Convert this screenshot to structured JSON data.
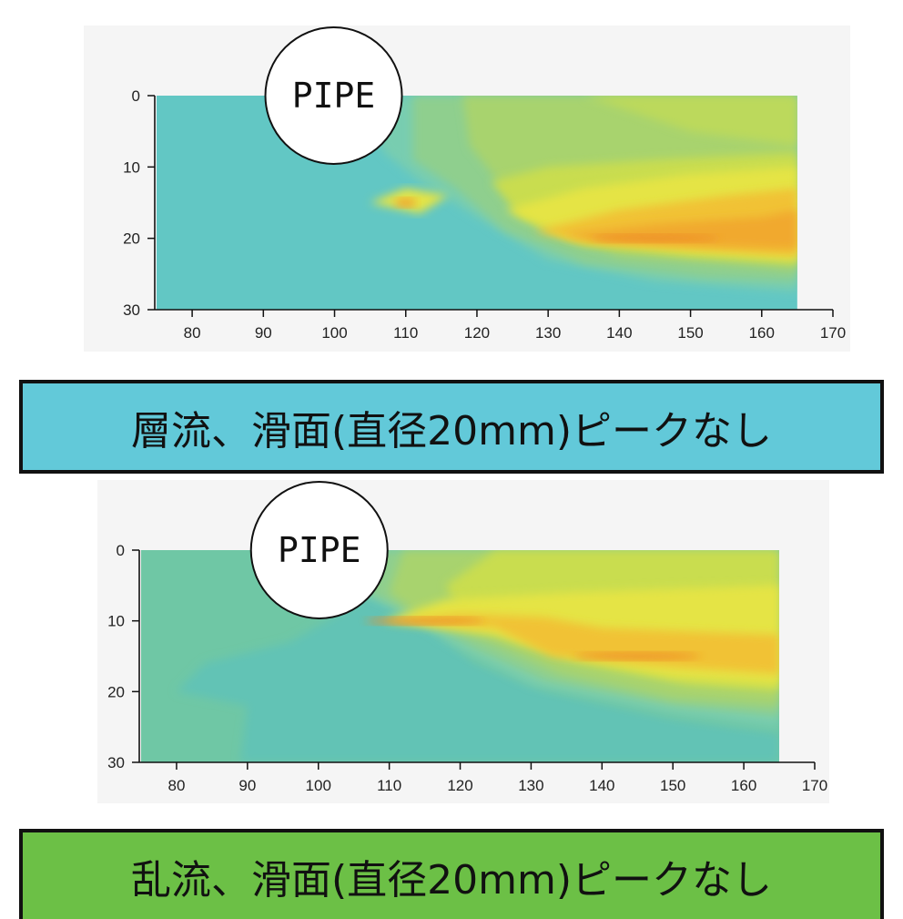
{
  "chart_data": [
    {
      "type": "heatmap",
      "title": "",
      "xlabel": "",
      "ylabel": "",
      "xlim": [
        75,
        170
      ],
      "ylim": [
        0,
        30
      ],
      "y_inverted": true,
      "x_ticks": [
        80,
        90,
        100,
        110,
        120,
        130,
        140,
        150,
        160,
        170
      ],
      "y_ticks": [
        0,
        10,
        20,
        30
      ],
      "data_extent_x": [
        75,
        165
      ],
      "grid": false,
      "annotation": "PIPE",
      "pipe_center": [
        100,
        0
      ],
      "background_color": "#62c7c4",
      "contours": [
        {
          "level": 1,
          "color": "#78cdb0",
          "boundary": [
            [
              105,
              0
            ],
            [
              109,
              10
            ],
            [
              113,
              12
            ],
            [
              122,
              18
            ],
            [
              132,
              24
            ],
            [
              150,
              26
            ],
            [
              165,
              27
            ]
          ]
        },
        {
          "level": 2,
          "color": "#8fcf8e",
          "boundary": [
            [
              112,
              0
            ],
            [
              112,
              10
            ],
            [
              118,
              13
            ],
            [
              125,
              19
            ],
            [
              135,
              23
            ],
            [
              155,
              25
            ],
            [
              165,
              26
            ]
          ]
        },
        {
          "level": 3,
          "color": "#a8d36e",
          "boundary": [
            [
              118,
              0
            ],
            [
              120,
              8
            ],
            [
              125,
              12
            ],
            [
              130,
              18
            ],
            [
              140,
              22
            ],
            [
              160,
              24
            ],
            [
              165,
              24
            ]
          ]
        },
        {
          "level": 4,
          "color": "#c9dd50",
          "boundary": [
            [
              140,
              0
            ],
            [
              150,
              6
            ],
            [
              165,
              7
            ]
          ]
        },
        {
          "level": 5,
          "color": "#e5e444",
          "boundary": [
            [
              120,
              14
            ],
            [
              130,
              19
            ],
            [
              150,
              22
            ],
            [
              165,
              23
            ]
          ]
        },
        {
          "level": 6,
          "color": "#f1c236",
          "boundary": [
            [
              128,
              19
            ],
            [
              140,
              21
            ],
            [
              165,
              22
            ]
          ]
        },
        {
          "level": 7,
          "color": "#f19d2e",
          "boundary": [
            [
              135,
              20
            ],
            [
              150,
              20
            ],
            [
              165,
              21
            ]
          ]
        }
      ],
      "hotspots": [
        {
          "x": 110,
          "y": 15,
          "color": "#f19d2e"
        },
        {
          "x": 145,
          "y": 20,
          "color": "#ee8b27"
        }
      ]
    },
    {
      "type": "heatmap",
      "title": "",
      "xlabel": "",
      "ylabel": "",
      "xlim": [
        75,
        170
      ],
      "ylim": [
        0,
        30
      ],
      "y_inverted": true,
      "x_ticks": [
        80,
        90,
        100,
        110,
        120,
        130,
        140,
        150,
        160,
        170
      ],
      "y_ticks": [
        0,
        10,
        20,
        30
      ],
      "data_extent_x": [
        75,
        165
      ],
      "grid": false,
      "annotation": "PIPE",
      "pipe_center": [
        100,
        0
      ],
      "background_color": "#6fc7a5",
      "hotspots": [
        {
          "x": 115,
          "y": 10,
          "color": "#ee8b27"
        },
        {
          "x": 145,
          "y": 15,
          "color": "#ee8b27"
        }
      ]
    }
  ],
  "banners": {
    "laminar": {
      "text": "層流、滑面(直径20mm)ピークなし",
      "color": "#62c9d9"
    },
    "turbulent": {
      "text": "乱流、滑面(直径20mm)ピークなし",
      "color": "#6cc046"
    }
  }
}
